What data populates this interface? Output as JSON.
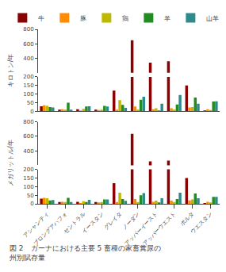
{
  "chart_data": [
    {
      "type": "bar",
      "ylabel": "キロトン/年",
      "categories": [
        "アシャンティ",
        "ブロングアハフォ",
        "セントラル",
        "イースタン",
        "グレイタ",
        "ノーダン",
        "アッパーイースト",
        "アッパーウエスト",
        "ボルタ",
        "ウエスタン"
      ],
      "series": [
        {
          "name": "牛",
          "color": "#8B0000",
          "values": [
            30,
            10,
            12,
            10,
            120,
            650,
            340,
            360,
            150,
            5
          ]
        },
        {
          "name": "豚",
          "color": "#FF8C00",
          "values": [
            35,
            12,
            5,
            8,
            10,
            28,
            12,
            18,
            22,
            12
          ]
        },
        {
          "name": "鶏",
          "color": "#BDB800",
          "values": [
            32,
            10,
            15,
            10,
            65,
            10,
            18,
            10,
            25,
            8
          ]
        },
        {
          "name": "羊",
          "color": "#228B22",
          "values": [
            25,
            50,
            28,
            32,
            38,
            68,
            5,
            40,
            80,
            57
          ]
        },
        {
          "name": "山羊",
          "color": "#2E8B8B",
          "values": [
            22,
            10,
            30,
            28,
            20,
            85,
            45,
            95,
            45,
            58
          ]
        }
      ],
      "ylim": [
        0,
        800
      ],
      "yticks": [
        0,
        50,
        100,
        150,
        200,
        400,
        600,
        800
      ],
      "grid": false,
      "legend": "upper left",
      "tick_labels": "y"
    },
    {
      "type": "bar",
      "ylabel": "メガリットル/年",
      "categories": [
        "アシャンティ",
        "ブロングアハフォ",
        "セントラル",
        "イースタン",
        "グレイタ",
        "ノーダン",
        "アッパーイースト",
        "アッパーウエスト",
        "ボルタ",
        "ウエスタン"
      ],
      "series": [
        {
          "name": "牛",
          "color": "#8B0000",
          "values": [
            30,
            10,
            12,
            10,
            120,
            635,
            255,
            265,
            150,
            5
          ]
        },
        {
          "name": "豚",
          "color": "#FF8C00",
          "values": [
            35,
            12,
            5,
            8,
            10,
            28,
            12,
            18,
            20,
            12
          ]
        },
        {
          "name": "鶏",
          "color": "#BDB800",
          "values": [
            32,
            10,
            15,
            10,
            65,
            10,
            18,
            10,
            25,
            8
          ]
        },
        {
          "name": "羊",
          "color": "#228B22",
          "values": [
            20,
            35,
            10,
            25,
            28,
            50,
            8,
            28,
            60,
            40
          ]
        },
        {
          "name": "山羊",
          "color": "#2E8B8B",
          "values": [
            22,
            10,
            23,
            25,
            17,
            62,
            32,
            65,
            32,
            40
          ]
        }
      ],
      "ylim": [
        0,
        800
      ],
      "yticks": [
        0,
        50,
        100,
        150,
        200,
        400,
        600,
        800
      ],
      "grid": false,
      "annotations": [
        "図 2　ガーナにおける主要 5 畜種の家畜糞尿の",
        "州別賦存量"
      ]
    }
  ]
}
